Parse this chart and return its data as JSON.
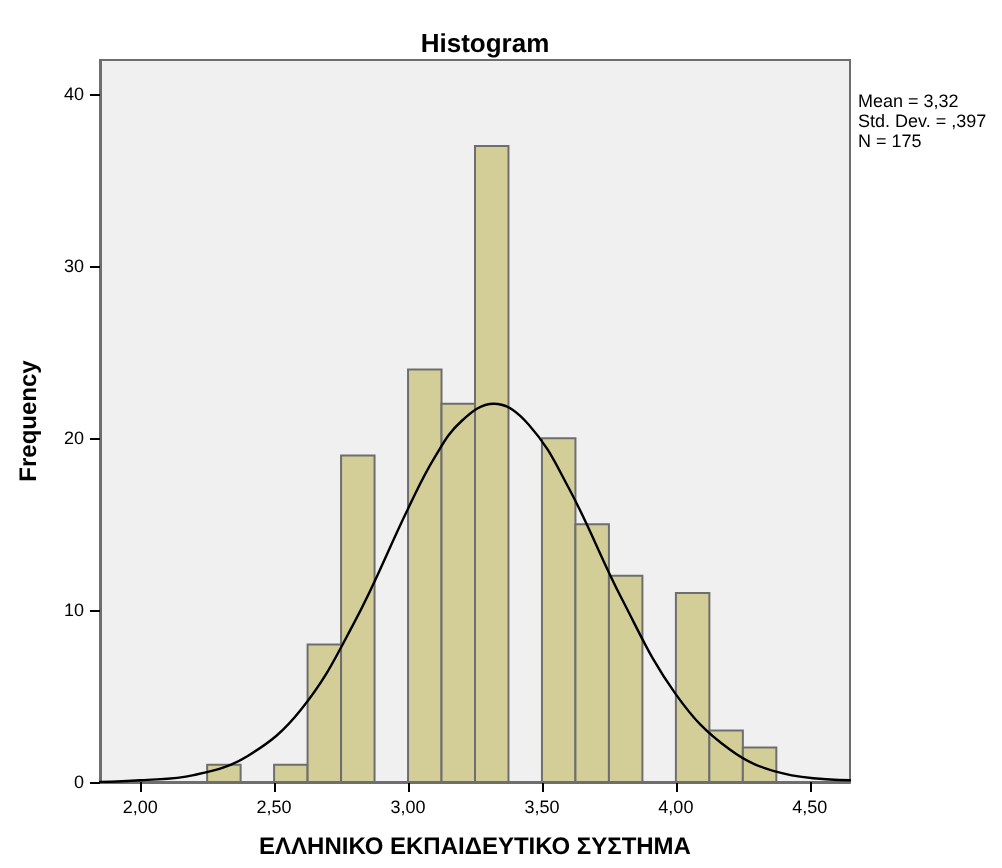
{
  "chart_data": {
    "type": "histogram",
    "title": "Histogram",
    "xlabel": "ΕΛΛΗΝΙΚΟ ΕΚΠΑΙΔΕΥΤΙΚΟ ΣΥΣΤΗΜΑ",
    "ylabel": "Frequency",
    "bins": [
      2.25,
      2.375,
      2.5,
      2.625,
      2.75,
      2.875,
      3.0,
      3.125,
      3.25,
      3.375,
      3.5,
      3.625,
      3.75,
      3.875,
      4.0,
      4.125,
      4.25,
      4.375
    ],
    "series": [
      {
        "color": "#d3ce97",
        "values": [
          1,
          0,
          1,
          8,
          19,
          0,
          24,
          22,
          37,
          0,
          20,
          15,
          12,
          0,
          11,
          3,
          2
        ]
      },
      {
        "type": "line",
        "color": "#000000",
        "x": [
          1.85,
          2.0,
          2.2,
          2.4,
          2.6,
          2.8,
          3.0,
          3.1,
          3.2,
          3.32,
          3.45,
          3.6,
          3.8,
          4.0,
          4.2,
          4.4,
          4.65
        ],
        "values": [
          0,
          0.1,
          0.4,
          1.5,
          4.2,
          9.3,
          15.9,
          18.9,
          21.0,
          22.0,
          20.8,
          17.1,
          10.6,
          5.1,
          1.9,
          0.5,
          0.1
        ]
      }
    ],
    "xlim": [
      1.85,
      4.65
    ],
    "xticks": [
      {
        "value": 2,
        "label": "2,00"
      },
      {
        "value": 2.5,
        "label": "2,50"
      },
      {
        "value": 3,
        "label": "3,00"
      },
      {
        "value": 3.5,
        "label": "3,50"
      },
      {
        "value": 4,
        "label": "4,00"
      },
      {
        "value": 4.5,
        "label": "4,50"
      }
    ],
    "ylim": [
      0,
      42
    ],
    "yticks": [
      0,
      10,
      20,
      30,
      40
    ],
    "grid": false,
    "marker": "none",
    "line_style": "solid",
    "annotations": [
      "Mean = 3,32",
      "Std. Dev. = ,397",
      "N = 175"
    ]
  }
}
